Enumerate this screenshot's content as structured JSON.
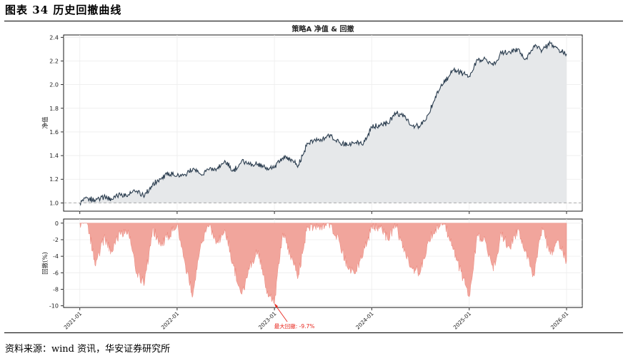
{
  "figure": {
    "title": "图表 34 历史回撤曲线",
    "source": "资料来源：wind 资讯，华安证券研究所"
  },
  "colors": {
    "equity_line": "#2c3e50",
    "equity_fill": "#e6e8ea",
    "drawdown_fill": "#f1a59c",
    "drawdown_edge": "#e8776b",
    "annotation": "#e8271e",
    "baseline": "#aaaaaa",
    "grid": "#ececec"
  },
  "chart_data": [
    {
      "type": "line",
      "title": "策略A 净值 & 回撤",
      "xlabel": "",
      "ylabel": "净值",
      "ylim": [
        0.93,
        2.42
      ],
      "yticks": [
        "1.0",
        "1.2",
        "1.4",
        "1.6",
        "1.8",
        "2.0",
        "2.2",
        "2.4"
      ],
      "xlim": [
        "2020-11-01",
        "2026-03-01"
      ],
      "baseline": 1.0,
      "fill_under": true,
      "grid": true,
      "series": [
        {
          "x": [
            "2021-01-01",
            "2021-02-01",
            "2021-03-01",
            "2021-04-01",
            "2021-05-01",
            "2021-06-01",
            "2021-07-01",
            "2021-08-01",
            "2021-09-01",
            "2021-10-01",
            "2021-11-01",
            "2021-12-01",
            "2022-01-01",
            "2022-02-01",
            "2022-03-01",
            "2022-04-01",
            "2022-05-01",
            "2022-06-01",
            "2022-07-01",
            "2022-08-01",
            "2022-09-01",
            "2022-10-01",
            "2022-11-01",
            "2022-12-01",
            "2023-01-01",
            "2023-02-01",
            "2023-03-01",
            "2023-04-01",
            "2023-05-01",
            "2023-06-01",
            "2023-07-01",
            "2023-08-01",
            "2023-09-01",
            "2023-10-01",
            "2023-11-01",
            "2023-12-01",
            "2024-01-01",
            "2024-02-01",
            "2024-03-01",
            "2024-04-01",
            "2024-05-01",
            "2024-06-01",
            "2024-07-01",
            "2024-08-01",
            "2024-09-01",
            "2024-10-01",
            "2024-11-01",
            "2024-12-01",
            "2025-01-01",
            "2025-02-01",
            "2025-03-01",
            "2025-04-01",
            "2025-05-01",
            "2025-06-01",
            "2025-07-01",
            "2025-08-01",
            "2025-09-01",
            "2025-10-01",
            "2025-11-01",
            "2025-12-01",
            "2026-01-01"
          ],
          "values": [
            1.0,
            1.04,
            1.02,
            1.05,
            1.03,
            1.07,
            1.07,
            1.1,
            1.06,
            1.16,
            1.2,
            1.25,
            1.23,
            1.24,
            1.29,
            1.24,
            1.28,
            1.29,
            1.35,
            1.27,
            1.36,
            1.33,
            1.33,
            1.3,
            1.3,
            1.38,
            1.37,
            1.32,
            1.48,
            1.54,
            1.54,
            1.57,
            1.51,
            1.49,
            1.51,
            1.5,
            1.64,
            1.66,
            1.67,
            1.76,
            1.73,
            1.65,
            1.65,
            1.75,
            1.93,
            2.02,
            2.12,
            2.1,
            2.07,
            2.21,
            2.22,
            2.16,
            2.27,
            2.28,
            2.3,
            2.22,
            2.33,
            2.29,
            2.35,
            2.3,
            2.26
          ]
        }
      ]
    },
    {
      "type": "area",
      "title": "",
      "xlabel": "",
      "ylabel": "回撤(%)",
      "ylim": [
        -10.2,
        0.5
      ],
      "yticks": [
        "0",
        "-2",
        "-4",
        "-6",
        "-8",
        "-10"
      ],
      "xticks": [
        "2021-01",
        "2022-01",
        "2023-01",
        "2024-01",
        "2025-01",
        "2026-01"
      ],
      "grid": true,
      "series": [
        {
          "x": [
            "2021-01-01",
            "2021-02-01",
            "2021-03-01",
            "2021-04-01",
            "2021-05-01",
            "2021-06-01",
            "2021-07-01",
            "2021-08-01",
            "2021-09-01",
            "2021-10-01",
            "2021-11-01",
            "2021-12-01",
            "2022-01-01",
            "2022-02-01",
            "2022-03-01",
            "2022-04-01",
            "2022-05-01",
            "2022-06-01",
            "2022-07-01",
            "2022-08-01",
            "2022-09-01",
            "2022-10-01",
            "2022-11-01",
            "2022-12-01",
            "2023-01-01",
            "2023-02-01",
            "2023-03-01",
            "2023-04-01",
            "2023-05-01",
            "2023-06-01",
            "2023-07-01",
            "2023-08-01",
            "2023-09-01",
            "2023-10-01",
            "2023-11-01",
            "2023-12-01",
            "2024-01-01",
            "2024-02-01",
            "2024-03-01",
            "2024-04-01",
            "2024-05-01",
            "2024-06-01",
            "2024-07-01",
            "2024-08-01",
            "2024-09-01",
            "2024-10-01",
            "2024-11-01",
            "2024-12-01",
            "2025-01-01",
            "2025-02-01",
            "2025-03-01",
            "2025-04-01",
            "2025-05-01",
            "2025-06-01",
            "2025-07-01",
            "2025-08-01",
            "2025-09-01",
            "2025-10-01",
            "2025-11-01",
            "2025-12-01",
            "2026-01-01"
          ],
          "values": [
            0.0,
            -0.3,
            -5.2,
            -1.8,
            -3.5,
            -1.2,
            -0.8,
            -6.1,
            -7.2,
            -0.6,
            -2.8,
            -1.5,
            -0.2,
            -5.1,
            -8.8,
            -2.3,
            -0.4,
            -2.4,
            -1.0,
            -5.2,
            -8.6,
            -5.1,
            -3.3,
            -7.8,
            -9.7,
            -1.2,
            -3.8,
            -6.3,
            -1.0,
            -0.2,
            -0.3,
            -0.2,
            -2.2,
            -5.3,
            -6.1,
            -3.5,
            -0.5,
            -0.3,
            -2.0,
            -0.2,
            -3.5,
            -5.5,
            -6.0,
            -2.1,
            -0.4,
            -0.2,
            -3.2,
            -5.9,
            -8.9,
            -1.4,
            -2.0,
            -5.8,
            -1.3,
            -2.9,
            -0.8,
            -3.2,
            -6.4,
            -0.5,
            -3.8,
            -2.0,
            -4.6
          ]
        }
      ],
      "annotations": [
        {
          "text": "最大回撤: -9.7%",
          "x": "2023-01-01",
          "y": -9.7
        }
      ]
    }
  ]
}
